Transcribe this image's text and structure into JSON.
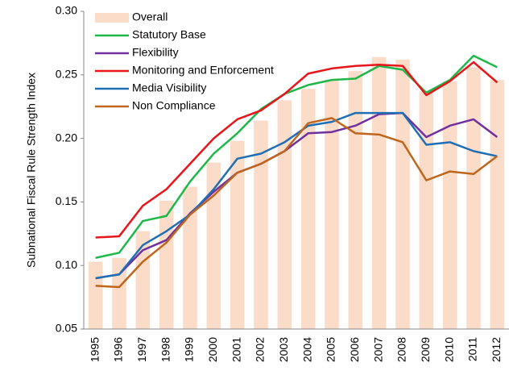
{
  "chart_data": {
    "type": "combo",
    "y_label": "Subnational Fiscal Rule Strength Index",
    "categories": [
      "1995",
      "1996",
      "1997",
      "1998",
      "1999",
      "2000",
      "2001",
      "2002",
      "2003",
      "2004",
      "2005",
      "2006",
      "2007",
      "2008",
      "2009",
      "2010",
      "2011",
      "2012"
    ],
    "ylim": [
      0.05,
      0.3
    ],
    "yticks": [
      0.05,
      {
        "value": 0.1,
        "label": "0.10"
      },
      0.15,
      {
        "value": 0.2,
        "label": "0.20"
      },
      0.25,
      {
        "value": 0.3,
        "label": "0.30"
      }
    ],
    "legend": "upper left",
    "grid": false,
    "series": [
      {
        "name": "Overall",
        "type": "bar",
        "color": "#fbdcc8",
        "values": [
          0.103,
          0.106,
          0.127,
          0.151,
          0.162,
          0.181,
          0.198,
          0.214,
          0.23,
          0.239,
          0.246,
          0.253,
          0.264,
          0.262,
          0.237,
          0.245,
          0.256,
          0.246
        ]
      },
      {
        "name": "Statutory Base",
        "type": "line",
        "color": "#1eb84a",
        "values": [
          0.106,
          0.11,
          0.135,
          0.139,
          0.166,
          0.188,
          0.204,
          0.223,
          0.235,
          0.242,
          0.246,
          0.247,
          0.257,
          0.254,
          0.236,
          0.246,
          0.265,
          0.256
        ]
      },
      {
        "name": "Flexibility",
        "type": "line",
        "color": "#7030a0",
        "values": [
          0.09,
          0.093,
          0.112,
          0.12,
          0.141,
          0.158,
          0.173,
          0.18,
          0.19,
          0.204,
          0.205,
          0.21,
          0.219,
          0.22,
          0.201,
          0.21,
          0.215,
          0.201
        ]
      },
      {
        "name": "Monitoring and Enforcement",
        "type": "line",
        "color": "#e8151b",
        "values": [
          0.122,
          0.123,
          0.147,
          0.16,
          0.18,
          0.2,
          0.215,
          0.222,
          0.235,
          0.251,
          0.255,
          0.257,
          0.258,
          0.257,
          0.234,
          0.245,
          0.26,
          0.244
        ]
      },
      {
        "name": "Media Visibility",
        "type": "line",
        "color": "#1f6fb5",
        "values": [
          0.09,
          0.093,
          0.116,
          0.127,
          0.14,
          0.16,
          0.184,
          0.188,
          0.197,
          0.21,
          0.213,
          0.22,
          0.22,
          0.22,
          0.195,
          0.197,
          0.19,
          0.186
        ]
      },
      {
        "name": "Non Compliance",
        "type": "line",
        "color": "#c0651d",
        "values": [
          0.084,
          0.083,
          0.103,
          0.118,
          0.14,
          0.155,
          0.173,
          0.18,
          0.19,
          0.212,
          0.216,
          0.204,
          0.203,
          0.197,
          0.167,
          0.174,
          0.172,
          0.186
        ]
      }
    ]
  }
}
